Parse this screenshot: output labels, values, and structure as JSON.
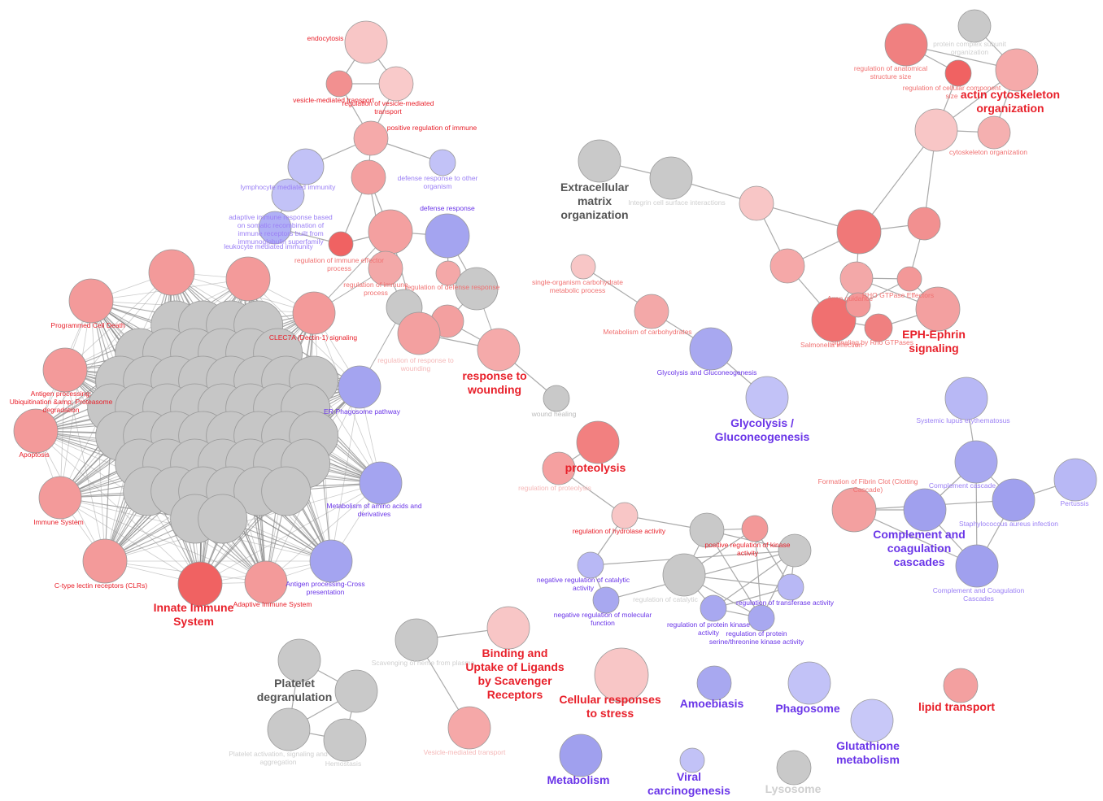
{
  "group_labels": [
    [
      "Extracellular",
      "matrix",
      "organization"
    ],
    [
      "actin cytoskeleton",
      "organization"
    ],
    [
      "EPH-Ephrin",
      "signaling"
    ],
    [
      "response to",
      "wounding"
    ],
    [
      "Innate Immune",
      "System"
    ],
    [
      "proteolysis"
    ],
    [
      "Glycolysis /",
      "Gluconeogenesis"
    ],
    [
      "Complement and",
      "coagulation",
      "cascades"
    ],
    [
      "Binding and",
      "Uptake of Ligands",
      "by Scavenger",
      "Receptors"
    ],
    [
      "Platelet",
      "degranulation"
    ],
    [
      "Cellular responses",
      "to stress"
    ],
    [
      "Amoebiasis"
    ],
    [
      "Phagosome"
    ],
    [
      "lipid transport"
    ],
    [
      "Glutathione",
      "metabolism"
    ],
    [
      "Metabolism"
    ],
    [
      "Viral",
      "carcinogenesis"
    ],
    [
      "Lysosome"
    ]
  ],
  "node_labels": [
    [
      "endocytosis"
    ],
    [
      "vesicle-mediated transport"
    ],
    [
      "regulation of vesicle-mediated",
      "transport"
    ],
    [
      "positive regulation of immune"
    ],
    [
      "defense response to other",
      "organism"
    ],
    [
      "lymphocyte mediated immunity"
    ],
    [
      "adaptive immune response based",
      "on somatic recombination of",
      "immune receptors built from",
      "immunoglobulin superfamily"
    ],
    [
      "leukocyte mediated immunity"
    ],
    [
      "defense response"
    ],
    [
      "regulation of immune effector",
      "process"
    ],
    [
      "regulation of immune",
      "process"
    ],
    [
      "regulation of defense response"
    ],
    [
      "regulation of response to",
      "wounding"
    ],
    [
      "wound healing"
    ],
    [
      "Programmed Cell Death"
    ],
    [
      "Antigen processing:",
      "Ubiquitination &amp; Proteasome",
      "degradation"
    ],
    [
      "Apoptosis"
    ],
    [
      "Immune System"
    ],
    [
      "C-type lectin receptors (CLRs)"
    ],
    [
      "Adaptive Immune System"
    ],
    [
      "ER-Phagosome pathway"
    ],
    [
      "Metabolism of amino acids and",
      "derivatives"
    ],
    [
      "Antigen processing-Cross",
      "presentation"
    ],
    [
      "CLEC7A (Dectin-1) signaling"
    ],
    [
      "Integrin cell surface interactions"
    ],
    [
      "single-organism carbohydrate",
      "metabolic process"
    ],
    [
      "Metabolism of carbohydrates"
    ],
    [
      "Glycolysis and Gluconeogenesis"
    ],
    [
      "regulation of anatomical",
      "structure size"
    ],
    [
      "protein complex subunit",
      "organization"
    ],
    [
      "regulation of cellular component",
      "size"
    ],
    [
      "cytoskeleton organization"
    ],
    [
      "Axon guidance"
    ],
    [
      "RHO GTPase Effectors"
    ],
    [
      "Signaling by Rho GTPases"
    ],
    [
      "Salmonella infection"
    ],
    [
      "Systemic lupus erythematosus"
    ],
    [
      "Formation of Fibrin Clot (Clotting",
      "Cascade)"
    ],
    [
      "Complement cascade"
    ],
    [
      "Staphylococcus aureus infection"
    ],
    [
      "Pertussis"
    ],
    [
      "Complement and Coagulation",
      "Cascades"
    ],
    [
      "regulation of proteolysis"
    ],
    [
      "regulation of hydrolase activity"
    ],
    [
      "positive regulation of kinase",
      "activity"
    ],
    [
      "negative regulation of catalytic",
      "activity"
    ],
    [
      "negative regulation of molecular",
      "function"
    ],
    [
      "regulation of catalytic"
    ],
    [
      "regulation of transferase activity"
    ],
    [
      "regulation of protein kinase",
      "activity"
    ],
    [
      "regulation of protein",
      "serine/threonine kinase activity"
    ],
    [
      "Scavenging of heme from plasma"
    ],
    [
      "Vesicle-mediated transport"
    ],
    [
      "Platelet activation, signaling and",
      "aggregation"
    ],
    [
      "Hemostasis"
    ]
  ]
}
